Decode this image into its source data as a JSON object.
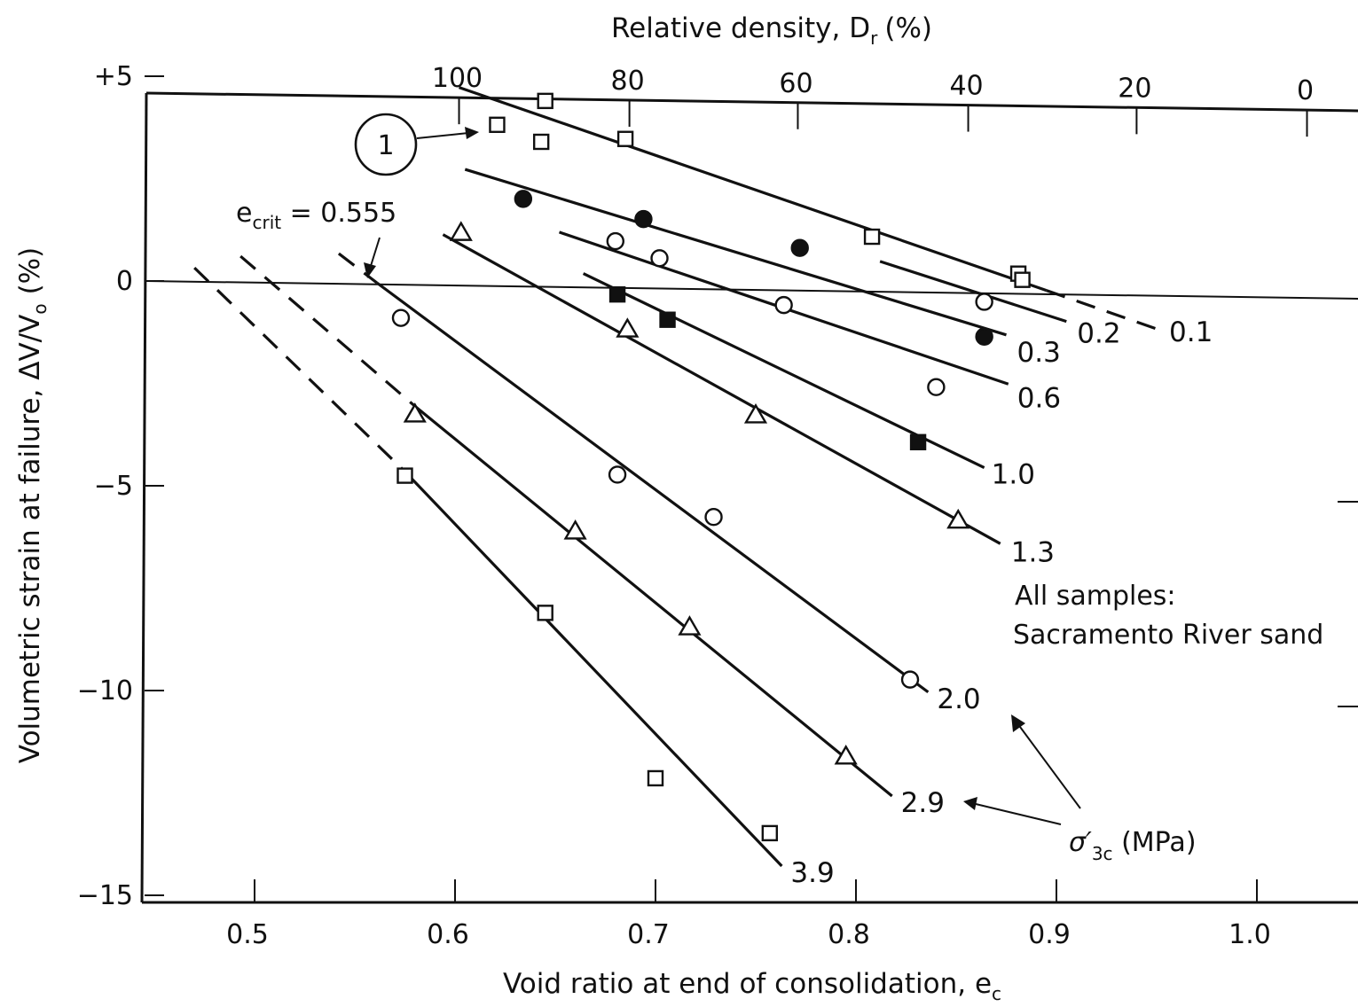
{
  "chart_data": {
    "type": "scatter",
    "xlabel_main": "Void ratio at end of consolidation, e",
    "xlabel_sub": "c",
    "ylabel_main": "Volumetric strain at failure, ΔV/V",
    "ylabel_sub": "o",
    "ylabel_unit": "(%)",
    "top_xlabel_main": "Relative density, D",
    "top_xlabel_sub": "r",
    "top_xlabel_unit": "(%)",
    "xlim": [
      0.45,
      1.05
    ],
    "ylim": [
      -15,
      5
    ],
    "x_ticks": [
      {
        "value": 0.5,
        "label": "0.5"
      },
      {
        "value": 0.6,
        "label": "0.6"
      },
      {
        "value": 0.7,
        "label": "0.7"
      },
      {
        "value": 0.8,
        "label": "0.8"
      },
      {
        "value": 0.9,
        "label": "0.9"
      },
      {
        "value": 1.0,
        "label": "1.0"
      }
    ],
    "y_ticks": [
      {
        "value": 5,
        "label": "+5"
      },
      {
        "value": 0,
        "label": "0"
      },
      {
        "value": -5,
        "label": "−5"
      },
      {
        "value": -10,
        "label": "−10"
      },
      {
        "value": -15,
        "label": "−15"
      }
    ],
    "top_ticks": [
      {
        "e": 0.602,
        "label": "100"
      },
      {
        "e": 0.687,
        "label": "80"
      },
      {
        "e": 0.771,
        "label": "60"
      },
      {
        "e": 0.856,
        "label": "40"
      },
      {
        "e": 0.94,
        "label": "20"
      },
      {
        "e": 1.025,
        "label": "0"
      }
    ],
    "reference_line_y": 0,
    "series": [
      {
        "name": "0.1",
        "marker": "square-open",
        "line": [
          [
            0.602,
            4.8
          ],
          [
            0.895,
            0.05
          ]
        ],
        "dash": [
          [
            0.895,
            0.05
          ],
          [
            0.95,
            -0.85
          ]
        ],
        "points": [
          [
            0.645,
            4.5
          ],
          [
            0.621,
            3.9
          ],
          [
            0.643,
            3.5
          ],
          [
            0.685,
            3.6
          ],
          [
            0.808,
            1.3
          ],
          [
            0.881,
            0.45
          ],
          [
            0.883,
            0.3
          ]
        ]
      },
      {
        "name": "0.2",
        "marker": "circle-open",
        "line": [
          [
            0.812,
            0.7
          ],
          [
            0.905,
            -0.7
          ]
        ],
        "points": [
          [
            0.864,
            -0.25
          ]
        ]
      },
      {
        "name": "0.3",
        "marker": "circle-filled",
        "line": [
          [
            0.605,
            2.8
          ],
          [
            0.875,
            -1.05
          ]
        ],
        "points": [
          [
            0.634,
            2.1
          ],
          [
            0.694,
            1.65
          ],
          [
            0.772,
            1.0
          ],
          [
            0.864,
            -1.1
          ]
        ]
      },
      {
        "name": "0.6",
        "marker": "circle-open",
        "line": [
          [
            0.652,
            1.3
          ],
          [
            0.876,
            -2.25
          ]
        ],
        "points": [
          [
            0.68,
            1.1
          ],
          [
            0.702,
            0.7
          ],
          [
            0.764,
            -0.4
          ],
          [
            0.84,
            -2.35
          ]
        ]
      },
      {
        "name": "1.0",
        "marker": "square-filled",
        "line": [
          [
            0.664,
            0.3
          ],
          [
            0.864,
            -4.3
          ]
        ],
        "points": [
          [
            0.681,
            -0.2
          ],
          [
            0.706,
            -0.8
          ],
          [
            0.831,
            -3.7
          ]
        ]
      },
      {
        "name": "1.3",
        "marker": "triangle-open",
        "line": [
          [
            0.594,
            1.2
          ],
          [
            0.872,
            -6.15
          ]
        ],
        "points": [
          [
            0.603,
            1.25
          ],
          [
            0.686,
            -1.05
          ],
          [
            0.75,
            -3.1
          ],
          [
            0.851,
            -5.6
          ]
        ]
      },
      {
        "name": "2.0",
        "marker": "circle-open",
        "line": [
          [
            0.561,
            0.0
          ],
          [
            0.836,
            -9.8
          ]
        ],
        "dash": [
          [
            0.542,
            0.7
          ],
          [
            0.561,
            0.0
          ]
        ],
        "points": [
          [
            0.573,
            -0.85
          ],
          [
            0.681,
            -4.6
          ],
          [
            0.729,
            -5.6
          ],
          [
            0.827,
            -9.5
          ]
        ]
      },
      {
        "name": "2.9",
        "marker": "triangle-open",
        "line": [
          [
            0.58,
            -3.0
          ],
          [
            0.818,
            -12.35
          ]
        ],
        "dash": [
          [
            0.493,
            0.6
          ],
          [
            0.58,
            -3.0
          ]
        ],
        "points": [
          [
            0.58,
            -3.2
          ],
          [
            0.66,
            -6.0
          ],
          [
            0.717,
            -8.3
          ],
          [
            0.795,
            -11.4
          ]
        ]
      },
      {
        "name": "3.9",
        "marker": "square-open",
        "line": [
          [
            0.575,
            -4.6
          ],
          [
            0.763,
            -14.1
          ]
        ],
        "dash": [
          [
            0.47,
            0.3
          ],
          [
            0.575,
            -4.6
          ]
        ],
        "points": [
          [
            0.575,
            -4.7
          ],
          [
            0.645,
            -8.0
          ],
          [
            0.7,
            -12.0
          ],
          [
            0.757,
            -13.3
          ]
        ]
      }
    ],
    "annotations": {
      "circled_number": "1",
      "ecrit_label_main": "e",
      "ecrit_label_sub": "crit",
      "ecrit_label_value": " = 0.555",
      "sigma_main": "σ′",
      "sigma_sub": "3c",
      "sigma_unit": " (MPa)",
      "note_line1": "All samples:",
      "note_line2": "Sacramento River sand"
    }
  }
}
